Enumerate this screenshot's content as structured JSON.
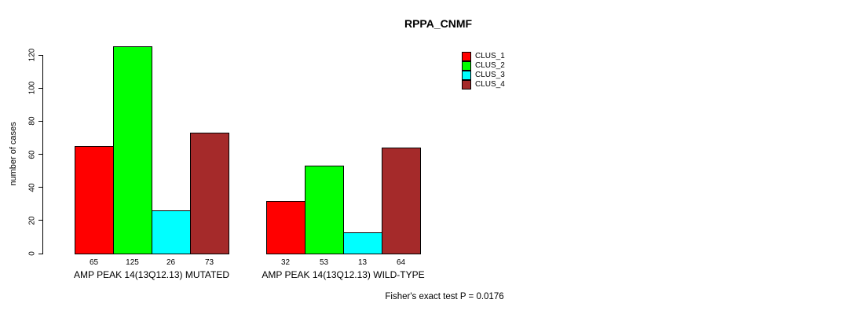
{
  "title": "RPPA_CNMF",
  "footnote": "Fisher's exact test P = 0.0176",
  "chart_data": {
    "type": "bar",
    "title": "RPPA_CNMF",
    "xlabel": "",
    "ylabel": "number of cases",
    "ylim": [
      0,
      120
    ],
    "yticks": [
      0,
      20,
      40,
      60,
      80,
      100,
      120
    ],
    "grid": false,
    "legend_position": "top-right",
    "bar_value_labels_shown": true,
    "categories": [
      "AMP PEAK 14(13Q12.13) MUTATED",
      "AMP PEAK 14(13Q12.13) WILD-TYPE"
    ],
    "series": [
      {
        "name": "CLUS_1",
        "color": "#ff0000",
        "values": [
          65,
          32
        ]
      },
      {
        "name": "CLUS_2",
        "color": "#00ff00",
        "values": [
          125,
          53
        ]
      },
      {
        "name": "CLUS_3",
        "color": "#00ffff",
        "values": [
          26,
          13
        ]
      },
      {
        "name": "CLUS_4",
        "color": "#a52a2a",
        "values": [
          73,
          64
        ]
      }
    ],
    "annotation": "Fisher's exact test P = 0.0176"
  }
}
